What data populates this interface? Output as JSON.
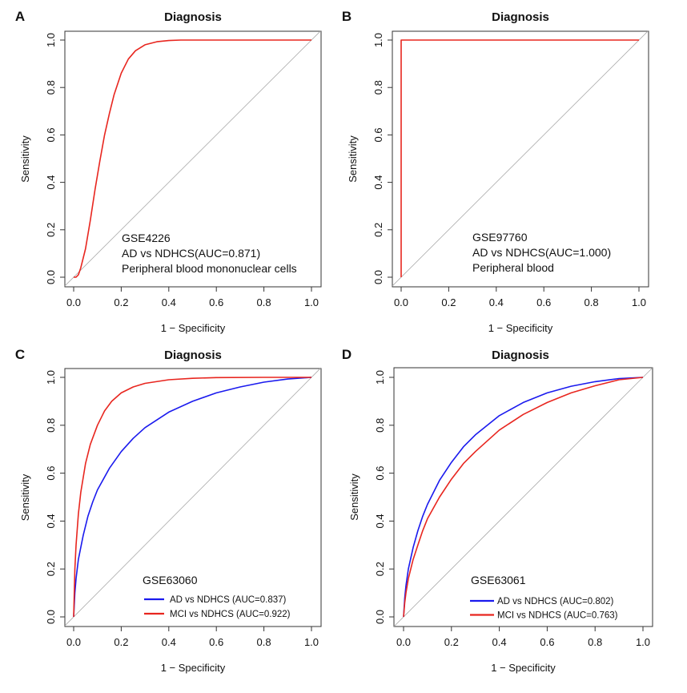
{
  "chart_data": [
    {
      "panel": "A",
      "type": "line",
      "title": "Diagnosis",
      "xlabel": "1 − Specificity",
      "ylabel": "Sensitivity",
      "xlim": [
        0,
        1
      ],
      "ylim": [
        0,
        1
      ],
      "xticks": [
        "0.0",
        "0.2",
        "0.4",
        "0.6",
        "0.8",
        "1.0"
      ],
      "yticks": [
        "0.0",
        "0.2",
        "0.4",
        "0.6",
        "0.8",
        "1.0"
      ],
      "reference_line": "diagonal",
      "annotations": [
        "GSE4226",
        "AD vs NDHCS(AUC=0.871)",
        "Peripheral blood mononuclear cells"
      ],
      "series": [
        {
          "color": "#e8261f",
          "x": [
            0,
            0.01,
            0.02,
            0.03,
            0.05,
            0.07,
            0.09,
            0.11,
            0.13,
            0.15,
            0.17,
            0.2,
            0.23,
            0.26,
            0.3,
            0.35,
            0.4,
            0.45,
            0.5,
            0.7,
            1.0
          ],
          "y": [
            0,
            0,
            0.01,
            0.04,
            0.12,
            0.24,
            0.37,
            0.49,
            0.6,
            0.69,
            0.77,
            0.86,
            0.92,
            0.955,
            0.98,
            0.993,
            0.998,
            1,
            1,
            1,
            1
          ]
        }
      ]
    },
    {
      "panel": "B",
      "type": "line",
      "title": "Diagnosis",
      "xlabel": "1 − Specificity",
      "ylabel": "Sensitivity",
      "xlim": [
        0,
        1
      ],
      "ylim": [
        0,
        1
      ],
      "xticks": [
        "0.0",
        "0.2",
        "0.4",
        "0.6",
        "0.8",
        "1.0"
      ],
      "yticks": [
        "0.0",
        "0.2",
        "0.4",
        "0.6",
        "0.8",
        "1.0"
      ],
      "reference_line": "diagonal",
      "annotations": [
        "GSE97760",
        "AD vs NDHCS(AUC=1.000)",
        "Peripheral blood"
      ],
      "series": [
        {
          "color": "#e8261f",
          "x": [
            0,
            0,
            1
          ],
          "y": [
            0,
            1,
            1
          ]
        }
      ]
    },
    {
      "panel": "C",
      "type": "line",
      "title": "Diagnosis",
      "xlabel": "1 − Specificity",
      "ylabel": "Sensitivity",
      "xlim": [
        0,
        1
      ],
      "ylim": [
        0,
        1
      ],
      "xticks": [
        "0.0",
        "0.2",
        "0.4",
        "0.6",
        "0.8",
        "1.0"
      ],
      "yticks": [
        "0.0",
        "0.2",
        "0.4",
        "0.6",
        "0.8",
        "1.0"
      ],
      "reference_line": "diagonal",
      "annotations": [
        "GSE63060"
      ],
      "legend_position": "bottom-right",
      "series": [
        {
          "name": "AD vs NDHCS (AUC=0.837)",
          "color": "#1a1aee",
          "x": [
            0,
            0.005,
            0.01,
            0.02,
            0.04,
            0.06,
            0.08,
            0.1,
            0.15,
            0.2,
            0.25,
            0.3,
            0.4,
            0.5,
            0.6,
            0.7,
            0.8,
            0.9,
            1.0
          ],
          "y": [
            0,
            0.1,
            0.16,
            0.24,
            0.34,
            0.42,
            0.48,
            0.53,
            0.62,
            0.69,
            0.745,
            0.79,
            0.855,
            0.9,
            0.935,
            0.96,
            0.98,
            0.993,
            1
          ]
        },
        {
          "name": "MCI vs NDHCS (AUC=0.922)",
          "color": "#e8261f",
          "x": [
            0,
            0.005,
            0.01,
            0.02,
            0.03,
            0.05,
            0.07,
            0.1,
            0.13,
            0.16,
            0.2,
            0.25,
            0.3,
            0.4,
            0.5,
            0.6,
            0.8,
            1.0
          ],
          "y": [
            0,
            0.2,
            0.3,
            0.43,
            0.52,
            0.64,
            0.72,
            0.8,
            0.86,
            0.9,
            0.935,
            0.96,
            0.975,
            0.99,
            0.996,
            0.999,
            1,
            1
          ]
        }
      ]
    },
    {
      "panel": "D",
      "type": "line",
      "title": "Diagnosis",
      "xlabel": "1 − Specificity",
      "ylabel": "Sensitivity",
      "xlim": [
        0,
        1
      ],
      "ylim": [
        0,
        1
      ],
      "xticks": [
        "0.0",
        "0.2",
        "0.4",
        "0.6",
        "0.8",
        "1.0"
      ],
      "yticks": [
        "0.0",
        "0.2",
        "0.4",
        "0.6",
        "0.8",
        "1.0"
      ],
      "reference_line": "diagonal",
      "annotations": [
        "GSE63061"
      ],
      "legend_position": "bottom-right",
      "series": [
        {
          "name": "AD vs NDHCS (AUC=0.802)",
          "color": "#1a1aee",
          "x": [
            0,
            0.005,
            0.01,
            0.02,
            0.04,
            0.06,
            0.08,
            0.1,
            0.15,
            0.2,
            0.25,
            0.3,
            0.4,
            0.5,
            0.6,
            0.7,
            0.8,
            0.9,
            1.0
          ],
          "y": [
            0,
            0.08,
            0.13,
            0.2,
            0.29,
            0.36,
            0.42,
            0.47,
            0.57,
            0.645,
            0.71,
            0.76,
            0.84,
            0.895,
            0.935,
            0.963,
            0.982,
            0.995,
            1
          ]
        },
        {
          "name": "MCI vs NDHCS (AUC=0.763)",
          "color": "#e8261f",
          "x": [
            0,
            0.005,
            0.01,
            0.02,
            0.04,
            0.06,
            0.08,
            0.1,
            0.15,
            0.2,
            0.25,
            0.3,
            0.4,
            0.5,
            0.6,
            0.7,
            0.8,
            0.9,
            1.0
          ],
          "y": [
            0,
            0.06,
            0.1,
            0.16,
            0.24,
            0.3,
            0.36,
            0.41,
            0.5,
            0.575,
            0.64,
            0.69,
            0.78,
            0.845,
            0.895,
            0.935,
            0.965,
            0.99,
            1
          ]
        }
      ]
    }
  ]
}
